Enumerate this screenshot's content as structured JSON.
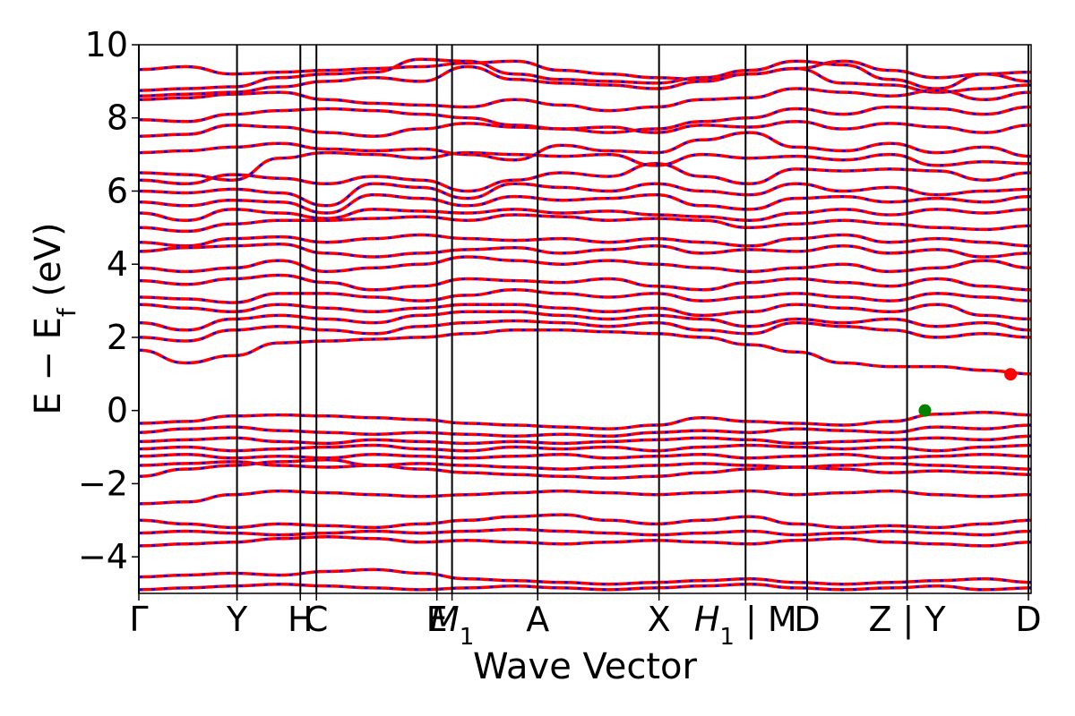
{
  "chart_data": {
    "type": "line",
    "title": "",
    "xlabel": "Wave Vector",
    "ylabel": "E − E_f (eV)",
    "ylabel_main": "E − E",
    "ylabel_sub": "f",
    "ylabel_unit": " (eV)",
    "ylim": [
      -5,
      10
    ],
    "yticks": [
      -4,
      -2,
      0,
      2,
      4,
      6,
      8,
      10
    ],
    "ytick_labels": [
      "−4",
      "−2",
      "0",
      "2",
      "4",
      "6",
      "8",
      "10"
    ],
    "xlim": [
      0,
      1
    ],
    "grid": false,
    "legend": "none",
    "high_symmetry_points": [
      {
        "x": 0.0,
        "label": "Γ"
      },
      {
        "x": 0.11,
        "label": "Y"
      },
      {
        "x": 0.181,
        "label": "H"
      },
      {
        "x": 0.199,
        "label": "C"
      },
      {
        "x": 0.334,
        "label": "E"
      },
      {
        "x": 0.351,
        "label": "M",
        "sub": "1"
      },
      {
        "x": 0.447,
        "label": "A"
      },
      {
        "x": 0.583,
        "label": "X"
      },
      {
        "x": 0.68,
        "label": "H",
        "sub": "1",
        "suffix": " | M"
      },
      {
        "x": 0.749,
        "label": "D"
      },
      {
        "x": 0.861,
        "label": "Z | Y"
      },
      {
        "x": 0.997,
        "label": "D"
      }
    ],
    "markers": [
      {
        "name": "valence band maximum",
        "x": 0.881,
        "y": 0.0,
        "color": "#008000"
      },
      {
        "name": "conduction band minimum",
        "x": 0.977,
        "y": 0.99,
        "color": "#ff0000"
      }
    ],
    "colors": {
      "band_red": "#ff0000",
      "band_blue": "#0000ff",
      "frame": "#000000"
    },
    "series": [
      {
        "values": [
          9.32,
          9.4,
          9.2,
          9.25,
          9.3,
          9.35,
          9.4,
          9.5,
          9.55,
          9.3,
          9.2,
          9.1,
          9.05,
          9.2,
          9.35,
          9.55,
          9.3,
          9.1,
          9.2,
          9.25
        ]
      },
      {
        "values": [
          8.75,
          8.8,
          8.85,
          9.1,
          9.2,
          9.25,
          9.6,
          9.55,
          9.2,
          9.05,
          9.0,
          8.95,
          9.1,
          9.3,
          9.55,
          9.45,
          9.05,
          8.8,
          9.2,
          9.0
        ]
      },
      {
        "values": [
          8.6,
          8.65,
          8.7,
          8.85,
          9.0,
          9.1,
          9.0,
          9.4,
          9.05,
          8.95,
          8.9,
          8.8,
          9.0,
          9.2,
          9.35,
          8.95,
          8.9,
          8.7,
          8.8,
          8.9
        ]
      },
      {
        "values": [
          8.5,
          8.55,
          8.65,
          8.7,
          8.5,
          8.4,
          8.35,
          8.3,
          8.5,
          8.35,
          8.2,
          8.3,
          8.5,
          8.55,
          8.8,
          8.7,
          8.6,
          8.75,
          8.5,
          8.7
        ]
      },
      {
        "values": [
          7.95,
          7.9,
          8.1,
          8.2,
          8.25,
          8.2,
          8.1,
          8.0,
          7.8,
          7.7,
          7.6,
          7.7,
          7.9,
          8.0,
          8.25,
          8.1,
          8.3,
          8.25,
          8.1,
          8.3
        ]
      },
      {
        "values": [
          7.5,
          7.55,
          7.8,
          7.75,
          7.6,
          7.5,
          7.7,
          7.85,
          7.75,
          7.7,
          7.75,
          7.6,
          7.8,
          7.75,
          7.9,
          7.7,
          7.85,
          7.75,
          7.6,
          7.8
        ]
      },
      {
        "values": [
          7.05,
          7.1,
          7.2,
          7.3,
          7.15,
          7.1,
          7.15,
          7.0,
          6.85,
          7.25,
          7.1,
          7.05,
          7.4,
          7.6,
          7.2,
          7.1,
          7.3,
          7.05,
          7.2,
          6.95
        ]
      },
      {
        "values": [
          6.5,
          6.45,
          6.3,
          6.9,
          7.05,
          7.0,
          6.9,
          7.05,
          7.0,
          6.95,
          7.0,
          6.7,
          7.0,
          6.9,
          6.95,
          6.85,
          7.0,
          6.7,
          6.8,
          6.75
        ]
      },
      {
        "values": [
          6.3,
          6.2,
          6.45,
          6.35,
          6.2,
          6.4,
          6.3,
          6.0,
          6.3,
          6.5,
          6.4,
          6.75,
          6.4,
          6.2,
          6.6,
          6.55,
          6.6,
          6.55,
          6.3,
          6.5
        ]
      },
      {
        "values": [
          6.0,
          5.95,
          6.05,
          5.95,
          5.6,
          6.2,
          6.1,
          5.8,
          6.2,
          6.1,
          6.0,
          6.2,
          6.0,
          5.9,
          6.2,
          6.0,
          6.1,
          5.9,
          6.0,
          6.05
        ]
      },
      {
        "values": [
          5.7,
          5.6,
          5.75,
          5.7,
          5.4,
          5.9,
          5.8,
          5.6,
          5.85,
          5.75,
          5.8,
          5.9,
          5.6,
          5.5,
          5.8,
          5.85,
          5.7,
          5.8,
          5.7,
          5.85
        ]
      },
      {
        "values": [
          5.4,
          5.2,
          5.5,
          5.4,
          5.25,
          5.5,
          5.45,
          5.4,
          5.5,
          5.4,
          5.45,
          5.35,
          5.3,
          5.2,
          5.4,
          5.5,
          5.35,
          5.5,
          5.4,
          5.5
        ]
      },
      {
        "values": [
          5.0,
          4.9,
          5.1,
          5.2,
          5.2,
          5.25,
          5.3,
          5.2,
          5.35,
          5.3,
          5.2,
          5.25,
          5.2,
          5.0,
          5.1,
          5.2,
          5.1,
          5.0,
          4.95,
          5.05
        ]
      },
      {
        "values": [
          4.6,
          4.5,
          4.7,
          4.75,
          4.6,
          4.7,
          4.8,
          4.7,
          4.65,
          4.7,
          4.6,
          4.7,
          4.6,
          4.5,
          4.7,
          4.8,
          4.6,
          4.7,
          4.6,
          4.5
        ]
      },
      {
        "values": [
          4.35,
          4.45,
          4.5,
          4.55,
          4.3,
          4.2,
          4.3,
          4.4,
          4.45,
          4.3,
          4.4,
          4.5,
          4.3,
          4.4,
          4.35,
          4.5,
          4.3,
          4.4,
          4.2,
          4.3
        ]
      },
      {
        "values": [
          3.9,
          3.8,
          3.9,
          4.1,
          3.8,
          3.9,
          4.0,
          4.2,
          4.1,
          4.0,
          4.1,
          4.0,
          3.9,
          3.8,
          3.9,
          4.0,
          3.8,
          3.9,
          4.1,
          3.9
        ]
      },
      {
        "values": [
          3.55,
          3.45,
          3.6,
          3.7,
          3.5,
          3.3,
          3.4,
          3.6,
          3.55,
          3.5,
          3.6,
          3.4,
          3.3,
          3.5,
          3.6,
          3.5,
          3.4,
          3.6,
          3.4,
          3.3
        ]
      },
      {
        "values": [
          3.1,
          3.05,
          2.95,
          3.2,
          3.2,
          3.1,
          3.0,
          3.15,
          3.3,
          3.2,
          3.1,
          3.2,
          3.0,
          3.1,
          3.2,
          3.1,
          3.0,
          3.2,
          3.1,
          3.0
        ]
      },
      {
        "values": [
          2.9,
          2.8,
          2.7,
          2.9,
          2.8,
          2.7,
          2.8,
          2.9,
          2.9,
          2.8,
          2.7,
          2.8,
          2.6,
          2.7,
          2.9,
          2.8,
          2.7,
          2.9,
          2.6,
          2.5
        ]
      },
      {
        "values": [
          2.4,
          2.2,
          2.5,
          2.6,
          2.5,
          2.4,
          2.6,
          2.7,
          2.7,
          2.6,
          2.5,
          2.6,
          2.5,
          2.3,
          2.5,
          2.4,
          2.5,
          2.3,
          2.4,
          2.2
        ]
      },
      {
        "values": [
          2.0,
          1.9,
          2.2,
          2.3,
          2.2,
          2.1,
          2.3,
          2.4,
          2.45,
          2.4,
          2.3,
          2.4,
          2.2,
          2.1,
          2.4,
          2.3,
          2.2,
          2.0,
          2.1,
          2.0
        ]
      },
      {
        "values": [
          1.65,
          1.3,
          1.5,
          1.85,
          1.9,
          1.95,
          2.0,
          2.1,
          2.2,
          2.2,
          2.15,
          2.1,
          2.0,
          1.8,
          1.6,
          1.3,
          1.2,
          1.2,
          1.1,
          1.0
        ]
      },
      {
        "values": [
          -0.35,
          -0.3,
          -0.15,
          -0.12,
          -0.15,
          -0.2,
          -0.25,
          -0.35,
          -0.4,
          -0.45,
          -0.5,
          -0.4,
          -0.2,
          -0.3,
          -0.35,
          -0.4,
          -0.3,
          -0.1,
          -0.05,
          -0.12
        ]
      },
      {
        "values": [
          -0.6,
          -0.5,
          -0.45,
          -0.55,
          -0.6,
          -0.65,
          -0.6,
          -0.65,
          -0.7,
          -0.65,
          -0.7,
          -0.6,
          -0.55,
          -0.6,
          -0.5,
          -0.55,
          -0.6,
          -0.45,
          -0.5,
          -0.4
        ]
      },
      {
        "values": [
          -0.85,
          -0.8,
          -0.75,
          -0.85,
          -0.9,
          -0.8,
          -0.85,
          -0.9,
          -0.85,
          -0.9,
          -0.85,
          -0.8,
          -0.75,
          -0.8,
          -0.9,
          -0.85,
          -0.8,
          -0.75,
          -0.8,
          -0.7
        ]
      },
      {
        "values": [
          -1.05,
          -1.0,
          -1.1,
          -1.05,
          -1.0,
          -0.95,
          -1.05,
          -1.1,
          -1.0,
          -1.05,
          -1.0,
          -1.1,
          -1.0,
          -0.95,
          -1.0,
          -1.05,
          -1.0,
          -1.1,
          -1.0,
          -0.95
        ]
      },
      {
        "values": [
          -1.25,
          -1.2,
          -1.3,
          -1.25,
          -1.3,
          -1.2,
          -1.25,
          -1.3,
          -1.25,
          -1.2,
          -1.3,
          -1.25,
          -1.2,
          -1.3,
          -1.25,
          -1.2,
          -1.3,
          -1.25,
          -1.2,
          -1.25
        ]
      },
      {
        "values": [
          -1.5,
          -1.45,
          -1.4,
          -1.5,
          -1.55,
          -1.5,
          -1.45,
          -1.5,
          -1.55,
          -1.6,
          -1.55,
          -1.5,
          -1.45,
          -1.5,
          -1.55,
          -1.5,
          -1.45,
          -1.5,
          -1.55,
          -1.6
        ]
      },
      {
        "values": [
          -1.8,
          -1.6,
          -1.5,
          -1.4,
          -1.35,
          -1.5,
          -1.6,
          -1.7,
          -1.75,
          -1.8,
          -1.85,
          -1.8,
          -1.7,
          -1.6,
          -1.55,
          -1.6,
          -1.7,
          -1.65,
          -1.7,
          -1.75
        ]
      },
      {
        "values": [
          -2.55,
          -2.5,
          -2.3,
          -2.2,
          -2.25,
          -2.3,
          -2.35,
          -2.3,
          -2.25,
          -2.2,
          -2.25,
          -2.3,
          -2.25,
          -2.2,
          -2.3,
          -2.25,
          -2.2,
          -2.3,
          -2.35,
          -2.3
        ]
      },
      {
        "values": [
          -3.0,
          -3.1,
          -3.2,
          -3.1,
          -3.15,
          -3.2,
          -3.1,
          -3.0,
          -2.9,
          -2.85,
          -3.0,
          -3.1,
          -3.0,
          -2.9,
          -3.1,
          -3.2,
          -3.15,
          -3.2,
          -3.1,
          -3.0
        ]
      },
      {
        "values": [
          -3.35,
          -3.3,
          -3.35,
          -3.4,
          -3.35,
          -3.3,
          -3.35,
          -3.3,
          -3.25,
          -3.3,
          -3.35,
          -3.4,
          -3.35,
          -3.3,
          -3.4,
          -3.35,
          -3.3,
          -3.35,
          -3.4,
          -3.3
        ]
      },
      {
        "values": [
          -3.7,
          -3.65,
          -3.6,
          -3.5,
          -3.45,
          -3.5,
          -3.6,
          -3.55,
          -3.6,
          -3.65,
          -3.6,
          -3.55,
          -3.6,
          -3.65,
          -3.55,
          -3.5,
          -3.6,
          -3.65,
          -3.7,
          -3.6
        ]
      },
      {
        "values": [
          -4.55,
          -4.5,
          -4.45,
          -4.5,
          -4.4,
          -4.35,
          -4.45,
          -4.6,
          -4.65,
          -4.7,
          -4.75,
          -4.7,
          -4.65,
          -4.6,
          -4.7,
          -4.75,
          -4.7,
          -4.65,
          -4.6,
          -4.7
        ]
      },
      {
        "values": [
          -4.9,
          -4.85,
          -4.8,
          -4.75,
          -4.8,
          -4.85,
          -4.9,
          -4.85,
          -4.8,
          -4.85,
          -4.9,
          -4.85,
          -4.8,
          -4.75,
          -4.85,
          -4.9,
          -4.85,
          -4.8,
          -4.9,
          -4.85
        ]
      }
    ]
  }
}
